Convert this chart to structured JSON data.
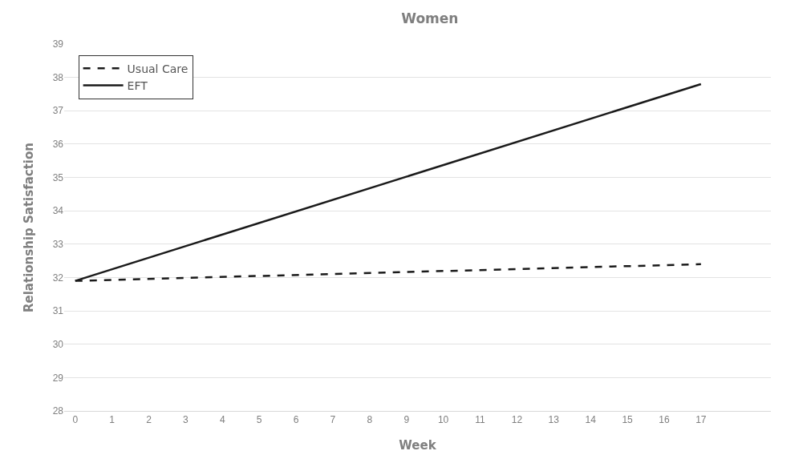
{
  "chart_data": {
    "type": "line",
    "title": "Women",
    "xlabel": "Week",
    "ylabel": "Relationship Satisfaction",
    "x": [
      0,
      17
    ],
    "xlim": [
      -0.3,
      18.9
    ],
    "xticks": [
      0,
      1,
      2,
      3,
      4,
      5,
      6,
      7,
      8,
      9,
      10,
      11,
      12,
      13,
      14,
      15,
      16,
      17
    ],
    "ylim": [
      28,
      39
    ],
    "yticks": [
      28,
      29,
      30,
      31,
      32,
      33,
      34,
      35,
      36,
      37,
      38,
      39
    ],
    "series": [
      {
        "name": "Usual Care",
        "color": "#1a1a1a",
        "values": [
          31.9,
          32.4
        ],
        "line_style": "dashed"
      },
      {
        "name": "EFT",
        "color": "#1a1a1a",
        "values": [
          31.9,
          37.8
        ],
        "line_style": "solid"
      }
    ],
    "grid": "y",
    "legend": "top left",
    "marker": "none"
  }
}
